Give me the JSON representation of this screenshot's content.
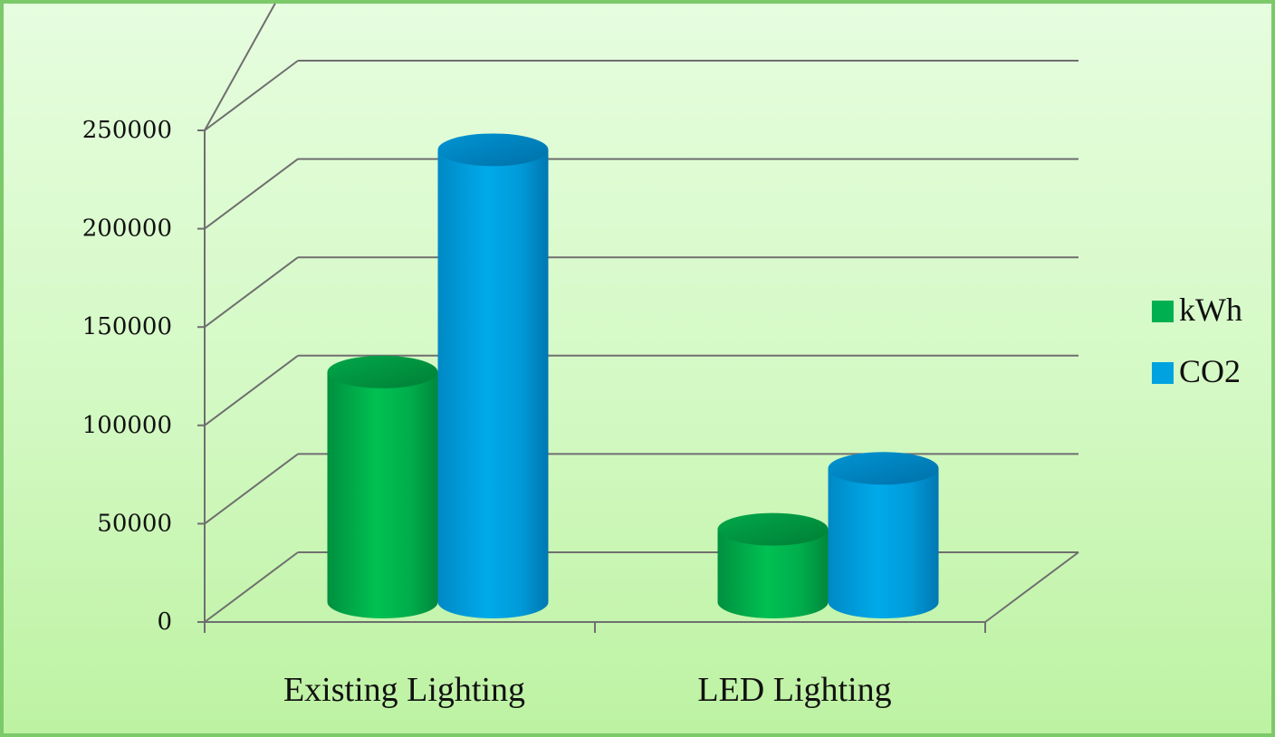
{
  "chart_data": {
    "type": "bar",
    "style": "3d-cylinder",
    "title": "",
    "xlabel": "",
    "ylabel": "",
    "categories": [
      "Existing Lighting",
      "LED Lighting"
    ],
    "series": [
      {
        "name": "kWh",
        "color": "#00b050",
        "values": [
          117000,
          37000
        ]
      },
      {
        "name": "CO2",
        "color": "#00a2e0",
        "values": [
          230000,
          68000
        ]
      }
    ],
    "ylim": [
      0,
      250000
    ],
    "yticks": [
      "0",
      "50000",
      "100000",
      "150000",
      "200000",
      "250000"
    ],
    "grid": true,
    "legend": {
      "position": "right",
      "labels": [
        "kWh",
        "CO2"
      ]
    },
    "background": "#dcfcd0",
    "gridline_color": "#6f6f6f"
  }
}
